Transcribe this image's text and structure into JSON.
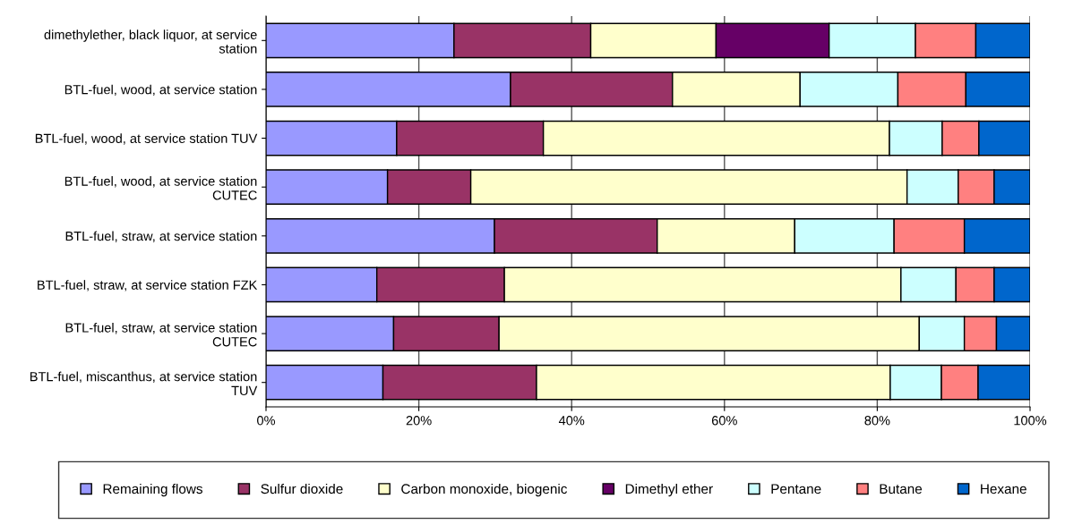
{
  "chart_data": {
    "type": "bar",
    "orientation": "horizontal",
    "stacked": true,
    "categories": [
      "dimethylether, black liquor, at service\nstation",
      "BTL-fuel, wood, at service station",
      "BTL-fuel, wood, at service station TUV",
      "BTL-fuel, wood, at service station\nCUTEC",
      "BTL-fuel, straw, at service station",
      "BTL-fuel, straw, at service station FZK",
      "BTL-fuel, straw, at service station\nCUTEC",
      "BTL-fuel, miscanthus, at service station\nTUV"
    ],
    "series": [
      {
        "name": "Remaining flows",
        "color": "#9999ff",
        "values": [
          24.6,
          32.0,
          17.1,
          15.9,
          29.9,
          14.5,
          16.7,
          15.3
        ]
      },
      {
        "name": "Sulfur dioxide",
        "color": "#993366",
        "values": [
          17.9,
          21.2,
          19.2,
          10.9,
          21.3,
          16.7,
          13.8,
          20.1
        ]
      },
      {
        "name": "Carbon monoxide, biogenic",
        "color": "#ffffcc",
        "values": [
          16.4,
          16.7,
          45.3,
          57.1,
          18.0,
          51.9,
          55.0,
          46.3
        ]
      },
      {
        "name": "Dimethyl ether",
        "color": "#660066",
        "values": [
          14.8,
          null,
          null,
          null,
          null,
          null,
          null,
          null
        ]
      },
      {
        "name": "Pentane",
        "color": "#ccffff",
        "values": [
          11.3,
          12.8,
          6.9,
          6.7,
          13.0,
          7.2,
          5.9,
          6.7
        ]
      },
      {
        "name": "Butane",
        "color": "#ff8080",
        "values": [
          7.9,
          8.9,
          4.8,
          4.7,
          9.2,
          5.0,
          4.2,
          4.8
        ]
      },
      {
        "name": "Hexane",
        "color": "#0066cc",
        "values": [
          7.1,
          8.4,
          6.7,
          4.7,
          8.6,
          4.7,
          4.4,
          6.8
        ]
      }
    ],
    "xlim": [
      0,
      100
    ],
    "xticks": [
      {
        "value": 0,
        "label": "0%"
      },
      {
        "value": 20,
        "label": "20%"
      },
      {
        "value": 40,
        "label": "40%"
      },
      {
        "value": 60,
        "label": "60%"
      },
      {
        "value": 80,
        "label": "80%"
      },
      {
        "value": 100,
        "label": "100%"
      }
    ],
    "grid": "x",
    "legend": "bottom"
  }
}
